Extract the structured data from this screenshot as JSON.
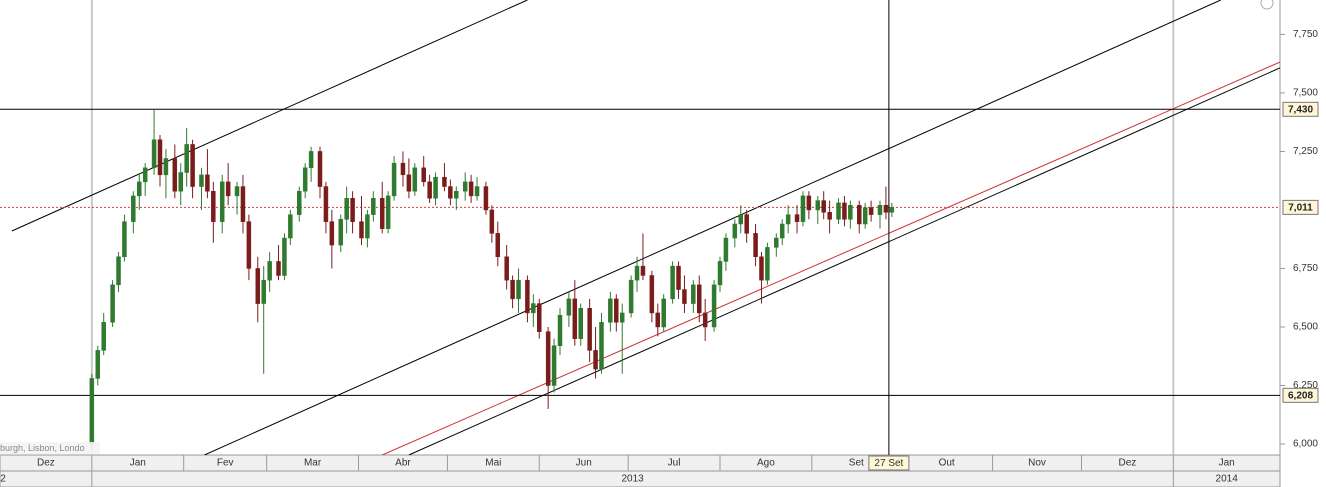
{
  "chart_data": {
    "type": "candlestick",
    "up_color": "#2f7a2f",
    "down_color": "#7a1c1c",
    "xlim": [
      -30,
      402
    ],
    "ylim": [
      5953,
      7897
    ],
    "xticks": [
      {
        "value": -30,
        "label": "Dez"
      },
      {
        "value": 1,
        "label": "Jan"
      },
      {
        "value": 32,
        "label": "Fev"
      },
      {
        "value": 60,
        "label": "Mar"
      },
      {
        "value": 91,
        "label": "Abr"
      },
      {
        "value": 121,
        "label": "Mai"
      },
      {
        "value": 152,
        "label": "Jun"
      },
      {
        "value": 182,
        "label": "Jul"
      },
      {
        "value": 213,
        "label": "Ago"
      },
      {
        "value": 244,
        "label": "Set"
      },
      {
        "value": 274,
        "label": "Out"
      },
      {
        "value": 305,
        "label": "Nov"
      },
      {
        "value": 335,
        "label": "Dez"
      },
      {
        "value": 366,
        "label": "Jan"
      }
    ],
    "year_ticks": [
      {
        "value": 1,
        "label": "2013"
      },
      {
        "value": 366,
        "label": "2014"
      }
    ],
    "prev_year_label": "2",
    "yticks": [
      {
        "value": 6000,
        "label": "6,000"
      },
      {
        "value": 6250,
        "label": "6,250"
      },
      {
        "value": 6500,
        "label": "6,500"
      },
      {
        "value": 6750,
        "label": "6,750"
      },
      {
        "value": 7250,
        "label": "7,250"
      },
      {
        "value": 7500,
        "label": "7,500"
      },
      {
        "value": 7750,
        "label": "7,750"
      }
    ],
    "hlines": [
      {
        "value": 7430,
        "label": "7,430",
        "color": "#000000",
        "dash": false
      },
      {
        "value": 6208,
        "label": "6,208",
        "color": "#000000",
        "dash": false
      },
      {
        "value": 7011,
        "label": "7,011",
        "color": "#d04040",
        "dash": true
      }
    ],
    "trend_lines": [
      {
        "color": "#000000",
        "x": [
          -26,
          148
        ],
        "y": [
          6910,
          7897
        ]
      },
      {
        "color": "#000000",
        "x": [
          39,
          382
        ],
        "y": [
          5953,
          7897
        ]
      },
      {
        "color": "#000000",
        "x": [
          108,
          402
        ],
        "y": [
          5953,
          7607
        ]
      },
      {
        "color": "#d03030",
        "x": [
          99,
          402
        ],
        "y": [
          5953,
          7632
        ]
      }
    ],
    "crosshair": {
      "x": 270,
      "label": "27 Set"
    },
    "footnote": "burgh, Lisbon, Londo",
    "x": [
      1,
      3,
      5,
      8,
      10,
      12,
      15,
      17,
      19,
      22,
      24,
      26,
      29,
      31,
      33,
      35,
      38,
      40,
      42,
      45,
      47,
      50,
      52,
      54,
      57,
      59,
      61,
      64,
      66,
      68,
      71,
      73,
      75,
      78,
      80,
      82,
      85,
      87,
      89,
      92,
      94,
      96,
      99,
      101,
      103,
      106,
      108,
      110,
      113,
      115,
      117,
      120,
      122,
      124,
      127,
      129,
      131,
      134,
      136,
      138,
      141,
      143,
      145,
      148,
      150,
      152,
      155,
      157,
      159,
      162,
      164,
      166,
      169,
      171,
      173,
      176,
      178,
      180,
      183,
      185,
      187,
      190,
      192,
      194,
      197,
      199,
      201,
      204,
      206,
      208,
      211,
      213,
      215,
      218,
      220,
      222,
      225,
      227,
      229,
      232,
      234,
      236,
      239,
      241,
      243,
      246,
      248,
      250,
      253,
      255,
      257,
      260,
      262,
      264,
      267,
      269,
      271
    ],
    "open": [
      6000,
      6280,
      6400,
      6520,
      6680,
      6800,
      6950,
      7060,
      7120,
      7180,
      7300,
      7150,
      7220,
      7080,
      7160,
      7280,
      7100,
      7150,
      7080,
      6950,
      7120,
      7060,
      7100,
      6950,
      6750,
      6600,
      6700,
      6780,
      6720,
      6880,
      6980,
      7080,
      7180,
      7250,
      7100,
      6950,
      6850,
      6960,
      7050,
      6950,
      6880,
      6980,
      7050,
      6920,
      7060,
      7200,
      7150,
      7080,
      7180,
      7120,
      7050,
      7140,
      7100,
      7050,
      7080,
      7120,
      7060,
      7100,
      7000,
      6900,
      6800,
      6700,
      6620,
      6700,
      6560,
      6600,
      6480,
      6250,
      6420,
      6550,
      6620,
      6450,
      6580,
      6400,
      6320,
      6520,
      6620,
      6520,
      6560,
      6700,
      6760,
      6720,
      6560,
      6500,
      6620,
      6760,
      6660,
      6600,
      6680,
      6560,
      6500,
      6680,
      6780,
      6880,
      6940,
      6980,
      6900,
      6800,
      6700,
      6840,
      6880,
      6940,
      6980,
      6950,
      7060,
      7000,
      7040,
      6990,
      6960,
      7030,
      6960,
      7020,
      6940,
      7010,
      6980,
      7020,
      6990
    ],
    "high": [
      6300,
      6420,
      6560,
      6700,
      6820,
      6980,
      7080,
      7150,
      7200,
      7430,
      7320,
      7260,
      7280,
      7200,
      7350,
      7300,
      7180,
      7260,
      7120,
      7150,
      7200,
      7120,
      7150,
      6980,
      6800,
      6760,
      6820,
      6850,
      6900,
      7000,
      7100,
      7200,
      7270,
      7270,
      7120,
      7000,
      6980,
      7100,
      7080,
      7060,
      7000,
      7080,
      7120,
      7080,
      7230,
      7250,
      7220,
      7200,
      7230,
      7150,
      7160,
      7200,
      7130,
      7100,
      7160,
      7150,
      7140,
      7120,
      7020,
      6950,
      6850,
      6720,
      6750,
      6720,
      6640,
      6620,
      6500,
      6450,
      6580,
      6650,
      6700,
      6600,
      6620,
      6500,
      6560,
      6650,
      6640,
      6600,
      6720,
      6800,
      6900,
      6740,
      6600,
      6640,
      6780,
      6780,
      6720,
      6700,
      6720,
      6620,
      6700,
      6800,
      6900,
      6960,
      7020,
      7000,
      6940,
      6820,
      6860,
      6900,
      6960,
      7020,
      7020,
      7080,
      7080,
      7060,
      7080,
      7040,
      7050,
      7060,
      7040,
      7040,
      7030,
      7040,
      7040,
      7100,
      7030
    ],
    "low": [
      5980,
      6250,
      6380,
      6500,
      6650,
      6780,
      6900,
      7000,
      7060,
      7150,
      7100,
      7050,
      7050,
      7020,
      7100,
      7050,
      7000,
      7050,
      6860,
      6900,
      7020,
      6980,
      6900,
      6700,
      6520,
      6300,
      6650,
      6700,
      6700,
      6850,
      6950,
      7050,
      7120,
      7050,
      6900,
      6750,
      6820,
      6900,
      6900,
      6850,
      6840,
      6950,
      6900,
      6900,
      7040,
      7100,
      7050,
      7060,
      7100,
      7030,
      7020,
      7080,
      7020,
      7000,
      7040,
      7030,
      7040,
      6980,
      6860,
      6760,
      6660,
      6580,
      6560,
      6520,
      6500,
      6450,
      6150,
      6220,
      6380,
      6500,
      6420,
      6420,
      6350,
      6280,
      6300,
      6480,
      6480,
      6300,
      6540,
      6650,
      6700,
      6520,
      6460,
      6480,
      6600,
      6620,
      6560,
      6560,
      6520,
      6440,
      6480,
      6650,
      6740,
      6840,
      6900,
      6860,
      6760,
      6600,
      6680,
      6800,
      6850,
      6900,
      6900,
      6930,
      6960,
      6940,
      6960,
      6900,
      6940,
      6930,
      6920,
      6900,
      6920,
      6950,
      6920,
      6960,
      6970
    ],
    "close": [
      6280,
      6400,
      6520,
      6680,
      6800,
      6950,
      7060,
      7120,
      7180,
      7300,
      7150,
      7220,
      7080,
      7160,
      7280,
      7100,
      7150,
      7080,
      6950,
      7120,
      7060,
      7100,
      6950,
      6750,
      6600,
      6700,
      6780,
      6720,
      6880,
      6980,
      7080,
      7180,
      7250,
      7100,
      6950,
      6850,
      6960,
      7050,
      6950,
      6880,
      6980,
      7050,
      6920,
      7060,
      7200,
      7150,
      7080,
      7180,
      7120,
      7050,
      7140,
      7100,
      7050,
      7080,
      7120,
      7060,
      7100,
      7000,
      6900,
      6800,
      6700,
      6620,
      6700,
      6560,
      6600,
      6480,
      6250,
      6420,
      6550,
      6620,
      6450,
      6580,
      6400,
      6320,
      6520,
      6620,
      6520,
      6560,
      6700,
      6760,
      6720,
      6560,
      6500,
      6620,
      6760,
      6660,
      6600,
      6680,
      6560,
      6500,
      6680,
      6780,
      6880,
      6940,
      6980,
      6900,
      6800,
      6700,
      6840,
      6880,
      6940,
      6980,
      6950,
      7060,
      7000,
      7040,
      6990,
      6960,
      7030,
      6960,
      7020,
      6940,
      7010,
      6980,
      7020,
      6990,
      7011
    ]
  }
}
